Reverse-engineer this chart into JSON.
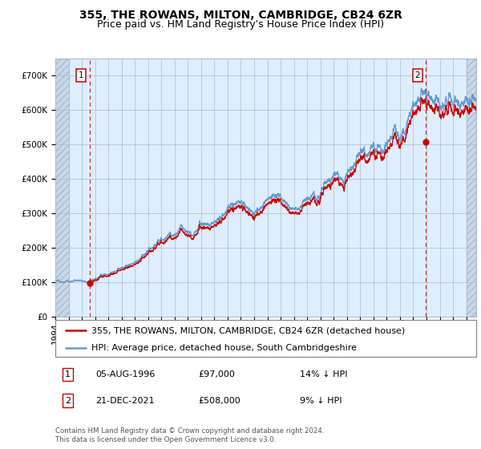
{
  "title": "355, THE ROWANS, MILTON, CAMBRIDGE, CB24 6ZR",
  "subtitle": "Price paid vs. HM Land Registry's House Price Index (HPI)",
  "legend_line1": "355, THE ROWANS, MILTON, CAMBRIDGE, CB24 6ZR (detached house)",
  "legend_line2": "HPI: Average price, detached house, South Cambridgeshire",
  "annotation1_date": "05-AUG-1996",
  "annotation1_price": "£97,000",
  "annotation1_hpi": "14% ↓ HPI",
  "annotation2_date": "21-DEC-2021",
  "annotation2_price": "£508,000",
  "annotation2_hpi": "9% ↓ HPI",
  "sale1_year": 1996.59,
  "sale1_value": 97000,
  "sale2_year": 2021.97,
  "sale2_value": 508000,
  "red_line_color": "#cc0000",
  "blue_line_color": "#6699cc",
  "bg_color": "#ddeeff",
  "grid_color": "#aabbcc",
  "vline_color": "#cc3333",
  "point_color": "#cc0000",
  "ylim_max": 750000,
  "ylim_min": 0,
  "xlim_start": 1994.0,
  "xlim_end": 2025.75,
  "hatch_left_end": 1995.08,
  "hatch_right_start": 2025.0,
  "footer_text": "Contains HM Land Registry data © Crown copyright and database right 2024.\nThis data is licensed under the Open Government Licence v3.0.",
  "title_fontsize": 10,
  "subtitle_fontsize": 9,
  "tick_fontsize": 7.5,
  "legend_fontsize": 8,
  "annotation_fontsize": 8
}
